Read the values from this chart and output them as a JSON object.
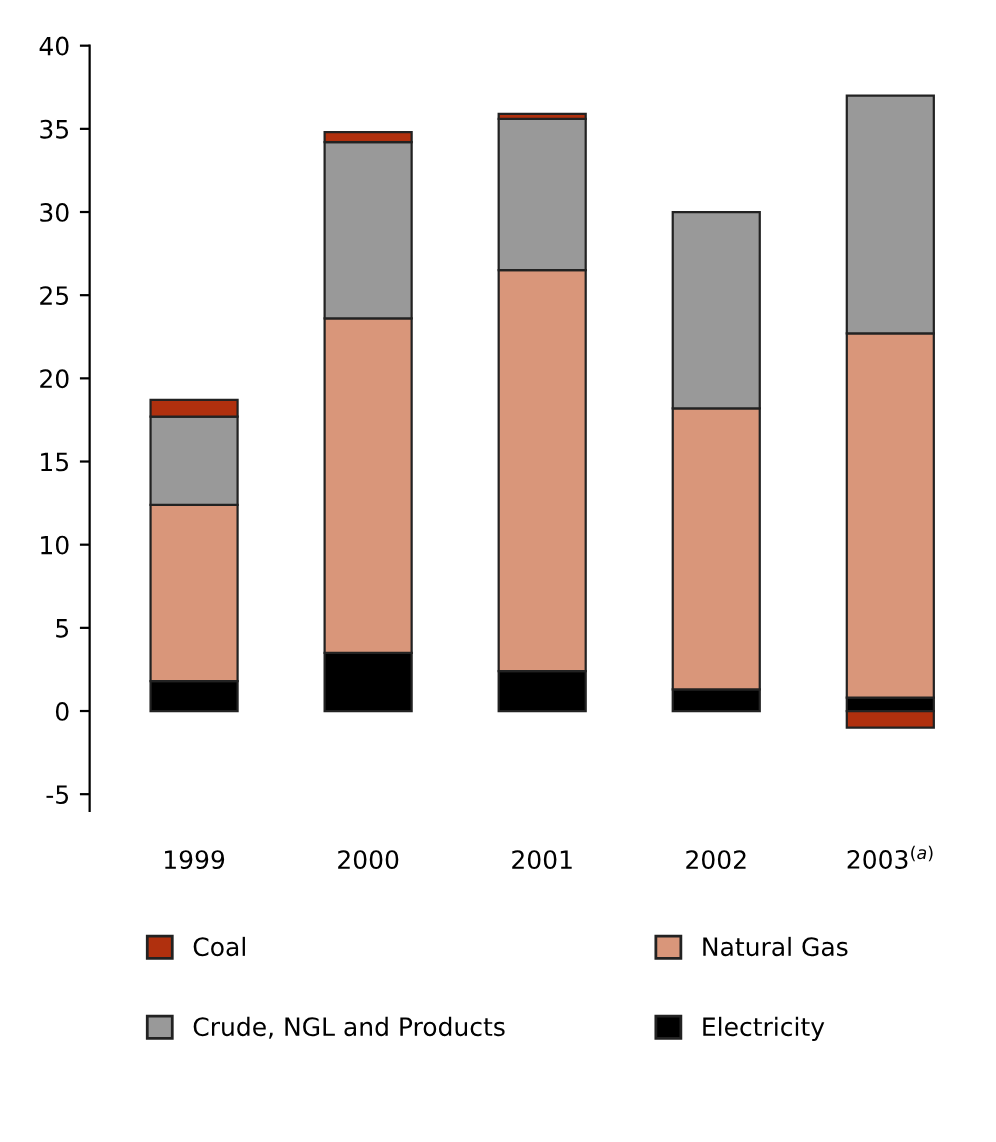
{
  "chart_data": {
    "type": "bar",
    "stacked": true,
    "categories": [
      "1999",
      "2000",
      "2001",
      "2002",
      "2003$^{(a)}$"
    ],
    "series": [
      {
        "name": "Electricity",
        "color": "#000000",
        "values": [
          1.8,
          3.5,
          2.4,
          1.3,
          0.8
        ]
      },
      {
        "name": "Natural Gas",
        "color": "#d9967a",
        "values": [
          10.6,
          20.1,
          24.1,
          16.9,
          21.9
        ]
      },
      {
        "name": "Crude, NGL and Products",
        "color": "#999999",
        "values": [
          5.3,
          10.6,
          9.1,
          11.8,
          14.3
        ]
      },
      {
        "name": "Coal",
        "color": "#b0300e",
        "values": [
          1.0,
          0.6,
          0.3,
          null,
          -1.0
        ]
      }
    ],
    "ylim": [
      -6,
      40
    ],
    "yticks": [
      -5,
      0,
      5,
      10,
      15,
      20,
      25,
      30,
      35,
      40
    ],
    "grid": false,
    "legend": "bottom"
  }
}
